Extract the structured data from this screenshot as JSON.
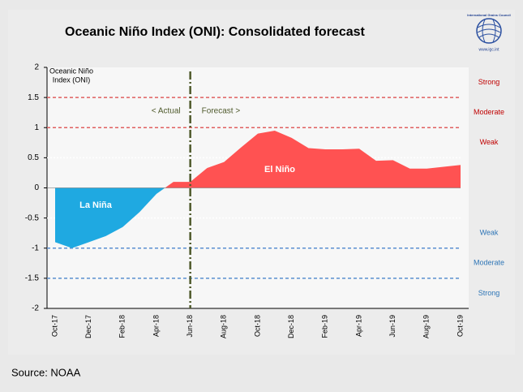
{
  "chart_data": {
    "type": "area",
    "title": "Oceanic Niño Index (ONI): Consolidated forecast",
    "y_label": [
      "Oceanic Niño",
      "Index (ONI)"
    ],
    "categories": [
      "Oct-17",
      null,
      "Dec-17",
      null,
      "Feb-18",
      null,
      "Apr-18",
      null,
      "Jun-18",
      null,
      "Aug-18",
      null,
      "Oct-18",
      null,
      "Dec-18",
      null,
      "Feb-19",
      null,
      "Apr-19",
      null,
      "Jun-19",
      null,
      "Aug-19",
      null,
      "Oct-19"
    ],
    "values": [
      -0.9,
      -1.0,
      -0.9,
      -0.8,
      -0.65,
      -0.4,
      -0.1,
      0.1,
      0.1,
      0.33,
      0.43,
      0.67,
      0.9,
      0.95,
      0.83,
      0.66,
      0.64,
      0.64,
      0.65,
      0.45,
      0.46,
      0.32,
      0.32,
      0.35,
      0.38
    ],
    "colors": {
      "positive": "#ff5252",
      "negative": "#1fa9e1"
    },
    "ylim": [
      -2,
      2
    ],
    "yticks": [
      2,
      1.5,
      1,
      0.5,
      0,
      -0.5,
      -1,
      -1.5,
      -2
    ],
    "thresholds": [
      {
        "value": 1.5,
        "label": "Strong"
      },
      {
        "value": 1,
        "label": "Moderate"
      },
      {
        "value": 0.5,
        "label": "Weak"
      },
      {
        "value": -0.5,
        "label": "Weak"
      },
      {
        "value": -1,
        "label": "Moderate"
      },
      {
        "value": -1.5,
        "label": "Strong"
      }
    ],
    "forecast_start": "Jun-18",
    "annotations": {
      "actual": "< Actual",
      "forecast": "Forecast >",
      "negative": "La Niña",
      "positive": "El Niño"
    },
    "logo": {
      "name": "International Grains Council",
      "url": "www.igc.int"
    },
    "source": "Source: NOAA"
  }
}
